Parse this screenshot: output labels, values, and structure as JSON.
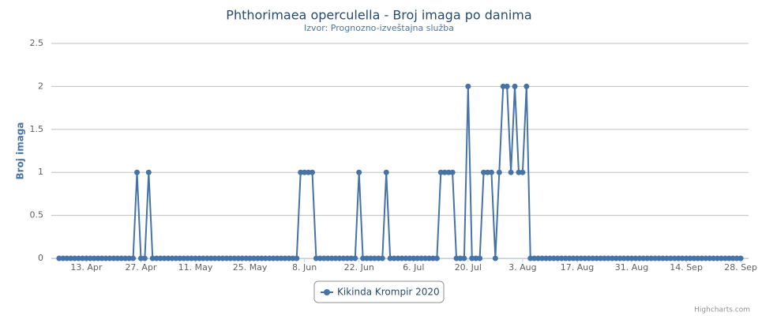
{
  "chart_data": {
    "type": "line",
    "title": "Phthorimaea operculella - Broj imaga po danima",
    "subtitle": "Izvor: Prognozno-izveštajna služba",
    "y_axis_label": "Broj imaga",
    "credits": "Highcharts.com",
    "legend": "bottom",
    "grid": true,
    "xlim": [
      "04-04",
      "09-30"
    ],
    "xticks": [
      {
        "value": "04-13",
        "label": "13. Apr"
      },
      {
        "value": "04-27",
        "label": "27. Apr"
      },
      {
        "value": "05-11",
        "label": "11. May"
      },
      {
        "value": "05-25",
        "label": "25. May"
      },
      {
        "value": "06-08",
        "label": "8. Jun"
      },
      {
        "value": "06-22",
        "label": "22. Jun"
      },
      {
        "value": "07-06",
        "label": "6. Jul"
      },
      {
        "value": "07-20",
        "label": "20. Jul"
      },
      {
        "value": "08-03",
        "label": "3. Aug"
      },
      {
        "value": "08-17",
        "label": "17. Aug"
      },
      {
        "value": "08-31",
        "label": "31. Aug"
      },
      {
        "value": "09-14",
        "label": "14. Sep"
      },
      {
        "value": "09-28",
        "label": "28. Sep"
      }
    ],
    "ylim": [
      0,
      2.5
    ],
    "yticks": [
      0,
      0.5,
      1,
      1.5,
      2,
      2.5
    ],
    "x": [
      "04-06",
      "04-07",
      "04-08",
      "04-09",
      "04-10",
      "04-11",
      "04-12",
      "04-13",
      "04-14",
      "04-15",
      "04-16",
      "04-17",
      "04-18",
      "04-19",
      "04-20",
      "04-21",
      "04-22",
      "04-23",
      "04-24",
      "04-25",
      "04-26",
      "04-27",
      "04-28",
      "04-29",
      "04-30",
      "05-01",
      "05-02",
      "05-03",
      "05-04",
      "05-05",
      "05-06",
      "05-07",
      "05-08",
      "05-09",
      "05-10",
      "05-11",
      "05-12",
      "05-13",
      "05-14",
      "05-15",
      "05-16",
      "05-17",
      "05-18",
      "05-19",
      "05-20",
      "05-21",
      "05-22",
      "05-23",
      "05-24",
      "05-25",
      "05-26",
      "05-27",
      "05-28",
      "05-29",
      "05-30",
      "05-31",
      "06-01",
      "06-02",
      "06-03",
      "06-04",
      "06-05",
      "06-06",
      "06-07",
      "06-08",
      "06-09",
      "06-10",
      "06-11",
      "06-12",
      "06-13",
      "06-14",
      "06-15",
      "06-16",
      "06-17",
      "06-18",
      "06-19",
      "06-20",
      "06-21",
      "06-22",
      "06-23",
      "06-24",
      "06-25",
      "06-26",
      "06-27",
      "06-28",
      "06-29",
      "06-30",
      "07-01",
      "07-02",
      "07-03",
      "07-04",
      "07-05",
      "07-06",
      "07-07",
      "07-08",
      "07-09",
      "07-10",
      "07-11",
      "07-12",
      "07-13",
      "07-14",
      "07-15",
      "07-16",
      "07-17",
      "07-18",
      "07-19",
      "07-20",
      "07-21",
      "07-22",
      "07-23",
      "07-24",
      "07-25",
      "07-26",
      "07-27",
      "07-28",
      "07-29",
      "07-30",
      "07-31",
      "08-01",
      "08-02",
      "08-03",
      "08-04",
      "08-05",
      "08-06",
      "08-07",
      "08-08",
      "08-09",
      "08-10",
      "08-11",
      "08-12",
      "08-13",
      "08-14",
      "08-15",
      "08-16",
      "08-17",
      "08-18",
      "08-19",
      "08-20",
      "08-21",
      "08-22",
      "08-23",
      "08-24",
      "08-25",
      "08-26",
      "08-27",
      "08-28",
      "08-29",
      "08-30",
      "08-31",
      "09-01",
      "09-02",
      "09-03",
      "09-04",
      "09-05",
      "09-06",
      "09-07",
      "09-08",
      "09-09",
      "09-10",
      "09-11",
      "09-12",
      "09-13",
      "09-14",
      "09-15",
      "09-16",
      "09-17",
      "09-18",
      "09-19",
      "09-20",
      "09-21",
      "09-22",
      "09-23",
      "09-24",
      "09-25",
      "09-26",
      "09-27",
      "09-28"
    ],
    "series": [
      {
        "name": "Kikinda Krompir 2020",
        "color": "#4572a7",
        "values": [
          0,
          0,
          0,
          0,
          0,
          0,
          0,
          0,
          0,
          0,
          0,
          0,
          0,
          0,
          0,
          0,
          0,
          0,
          0,
          0,
          1,
          0,
          0,
          1,
          0,
          0,
          0,
          0,
          0,
          0,
          0,
          0,
          0,
          0,
          0,
          0,
          0,
          0,
          0,
          0,
          0,
          0,
          0,
          0,
          0,
          0,
          0,
          0,
          0,
          0,
          0,
          0,
          0,
          0,
          0,
          0,
          0,
          0,
          0,
          0,
          0,
          0,
          1,
          1,
          1,
          1,
          0,
          0,
          0,
          0,
          0,
          0,
          0,
          0,
          0,
          0,
          0,
          1,
          0,
          0,
          0,
          0,
          0,
          0,
          1,
          0,
          0,
          0,
          0,
          0,
          0,
          0,
          0,
          0,
          0,
          0,
          0,
          0,
          1,
          1,
          1,
          1,
          0,
          0,
          0,
          2,
          0,
          0,
          0,
          1,
          1,
          1,
          0,
          1,
          2,
          2,
          1,
          2,
          1,
          1,
          2,
          0,
          0,
          0,
          0,
          0,
          0,
          0,
          0,
          0,
          0,
          0,
          0,
          0,
          0,
          0,
          0,
          0,
          0,
          0,
          0,
          0,
          0,
          0,
          0,
          0,
          0,
          0,
          0,
          0,
          0,
          0,
          0,
          0,
          0,
          0,
          0,
          0,
          0,
          0,
          0,
          0,
          0,
          0,
          0,
          0,
          0,
          0,
          0,
          0,
          0,
          0,
          0,
          0,
          0,
          0
        ]
      }
    ]
  }
}
